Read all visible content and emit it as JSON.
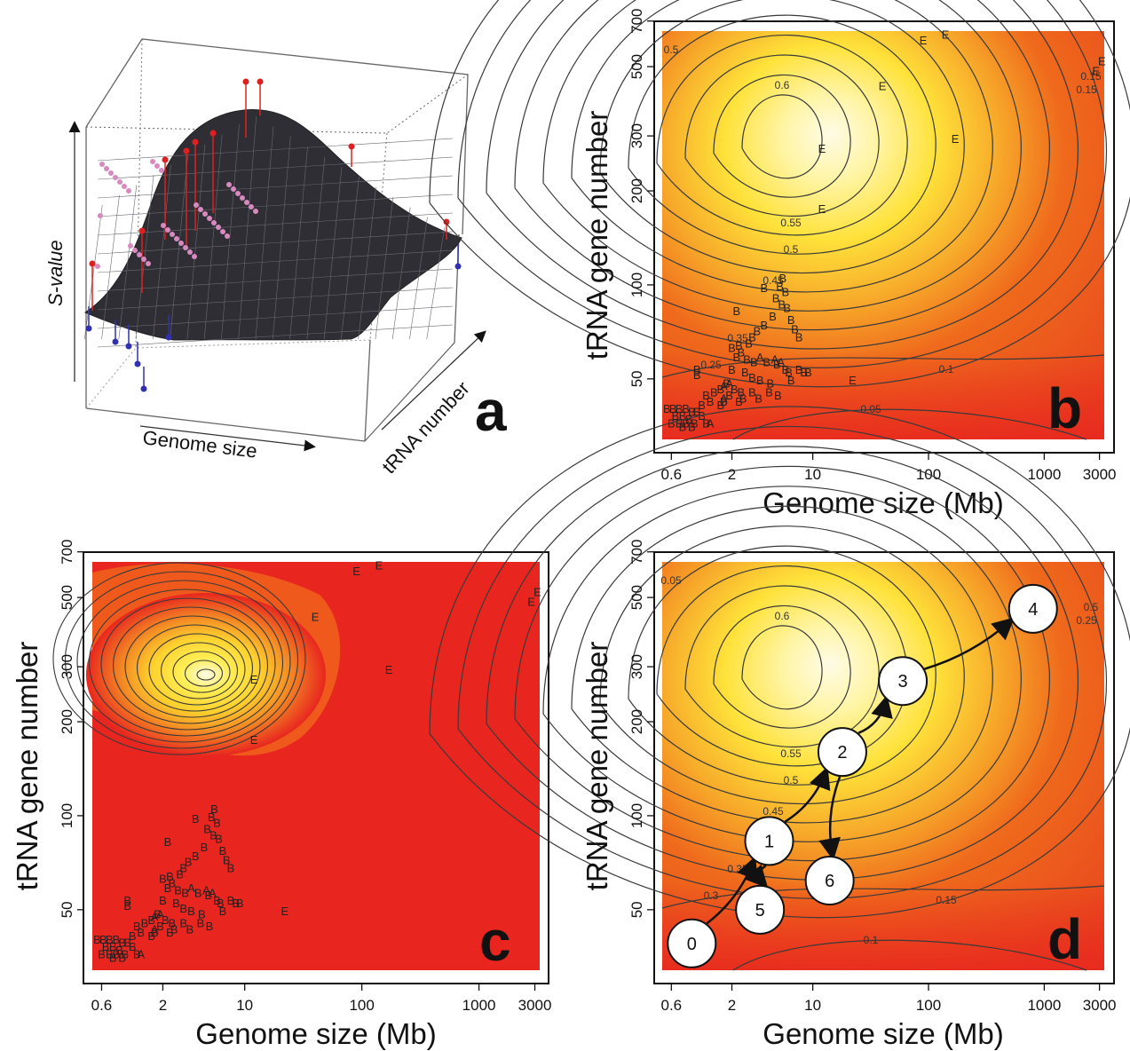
{
  "colors": {
    "red": "#e8261f",
    "orange": "#ef6a1c",
    "yellow": "#ffe23a",
    "pale": "#fffbe6",
    "contour": "#3a3a3a"
  },
  "chart_data": [
    {
      "panel": "a",
      "type": "surface",
      "xlabel": "Genome size",
      "ylabel": "tRNA number",
      "zlabel": "S-value",
      "points": {
        "above": "red",
        "below": "blue",
        "on": "pink"
      }
    },
    {
      "panel": "b",
      "type": "heatmap",
      "xlabel": "Genome size (Mb)",
      "ylabel": "tRNA gene number",
      "xscale": "log",
      "yscale": "log",
      "xlim": [
        0.5,
        3300
      ],
      "ylim": [
        32,
        650
      ],
      "xticks": [
        "0.6",
        "2",
        "10",
        "100",
        "1000",
        "3000"
      ],
      "yticks": [
        "50",
        "100",
        "200",
        "300",
        "500",
        "700"
      ],
      "contour_labels": [
        "0.6",
        "0.55",
        "0.5",
        "0.45",
        "0.35",
        "0.25",
        "0.15",
        "0.1",
        "0.05",
        "0.5",
        "0.15"
      ],
      "points": [
        {
          "l": "E",
          "x": 12,
          "y": 265
        },
        {
          "l": "E",
          "x": 12,
          "y": 170
        },
        {
          "l": "E",
          "x": 40,
          "y": 420
        },
        {
          "l": "E",
          "x": 90,
          "y": 590
        },
        {
          "l": "E",
          "x": 140,
          "y": 615
        },
        {
          "l": "E",
          "x": 170,
          "y": 285
        },
        {
          "l": "E",
          "x": 2800,
          "y": 470
        },
        {
          "l": "E",
          "x": 3150,
          "y": 505
        },
        {
          "l": "E",
          "x": 22,
          "y": 48
        },
        {
          "l": "B",
          "x": 5.5,
          "y": 102
        },
        {
          "l": "B",
          "x": 5.2,
          "y": 96
        },
        {
          "l": "B",
          "x": 5.8,
          "y": 92
        },
        {
          "l": "B",
          "x": 4.8,
          "y": 88
        },
        {
          "l": "B",
          "x": 5.4,
          "y": 84
        },
        {
          "l": "B",
          "x": 6.0,
          "y": 82
        },
        {
          "l": "B",
          "x": 4.5,
          "y": 77
        },
        {
          "l": "B",
          "x": 3.8,
          "y": 95
        },
        {
          "l": "B",
          "x": 2.2,
          "y": 80
        },
        {
          "l": "B",
          "x": 6.5,
          "y": 75
        },
        {
          "l": "B",
          "x": 7.0,
          "y": 70
        },
        {
          "l": "B",
          "x": 7.6,
          "y": 66
        },
        {
          "l": "B",
          "x": 3.8,
          "y": 72
        },
        {
          "l": "B",
          "x": 3.3,
          "y": 69
        },
        {
          "l": "B",
          "x": 3.0,
          "y": 66
        },
        {
          "l": "B",
          "x": 2.8,
          "y": 63
        },
        {
          "l": "B",
          "x": 2.3,
          "y": 62
        },
        {
          "l": "B",
          "x": 2.0,
          "y": 61
        },
        {
          "l": "B",
          "x": 2.4,
          "y": 59
        },
        {
          "l": "B",
          "x": 2.2,
          "y": 57
        },
        {
          "l": "B",
          "x": 2.7,
          "y": 56
        },
        {
          "l": "B",
          "x": 3.1,
          "y": 55
        },
        {
          "l": "B",
          "x": 4.0,
          "y": 55
        },
        {
          "l": "A",
          "x": 3.5,
          "y": 57
        },
        {
          "l": "A",
          "x": 4.7,
          "y": 56
        },
        {
          "l": "A",
          "x": 5.3,
          "y": 55
        },
        {
          "l": "B",
          "x": 4.9,
          "y": 54
        },
        {
          "l": "B",
          "x": 5.8,
          "y": 52
        },
        {
          "l": "B",
          "x": 6.2,
          "y": 51
        },
        {
          "l": "B",
          "x": 2.0,
          "y": 52
        },
        {
          "l": "B",
          "x": 2.6,
          "y": 51
        },
        {
          "l": "B",
          "x": 3.0,
          "y": 49
        },
        {
          "l": "B",
          "x": 3.5,
          "y": 48
        },
        {
          "l": "B",
          "x": 4.3,
          "y": 47
        },
        {
          "l": "B",
          "x": 6.5,
          "y": 48
        },
        {
          "l": "B",
          "x": 7.6,
          "y": 52
        },
        {
          "l": "B",
          "x": 8.4,
          "y": 51
        },
        {
          "l": "B",
          "x": 9.1,
          "y": 51
        },
        {
          "l": "B",
          "x": 1.0,
          "y": 52
        },
        {
          "l": "B",
          "x": 1.0,
          "y": 50
        },
        {
          "l": "B",
          "x": 1.8,
          "y": 47
        },
        {
          "l": "A",
          "x": 1.7,
          "y": 46
        },
        {
          "l": "A",
          "x": 1.9,
          "y": 47
        },
        {
          "l": "B",
          "x": 2.1,
          "y": 45
        },
        {
          "l": "B",
          "x": 2.4,
          "y": 44
        },
        {
          "l": "B",
          "x": 3.0,
          "y": 44
        },
        {
          "l": "B",
          "x": 3.4,
          "y": 42
        },
        {
          "l": "B",
          "x": 2.5,
          "y": 42
        },
        {
          "l": "B",
          "x": 1.6,
          "y": 45
        },
        {
          "l": "B",
          "x": 1.4,
          "y": 44
        },
        {
          "l": "B",
          "x": 1.2,
          "y": 43
        },
        {
          "l": "B",
          "x": 1.9,
          "y": 43
        },
        {
          "l": "B",
          "x": 2.3,
          "y": 41
        },
        {
          "l": "B",
          "x": 1.7,
          "y": 41
        },
        {
          "l": "B",
          "x": 1.6,
          "y": 40
        },
        {
          "l": "B",
          "x": 4.2,
          "y": 44
        },
        {
          "l": "B",
          "x": 5.0,
          "y": 43
        },
        {
          "l": "B",
          "x": 1.3,
          "y": 41
        },
        {
          "l": "B",
          "x": 1.1,
          "y": 40
        },
        {
          "l": "A",
          "x": 1.7,
          "y": 42
        },
        {
          "l": "B",
          "x": 0.55,
          "y": 39
        },
        {
          "l": "B",
          "x": 0.62,
          "y": 39
        },
        {
          "l": "B",
          "x": 0.7,
          "y": 39
        },
        {
          "l": "B",
          "x": 0.8,
          "y": 39
        },
        {
          "l": "B",
          "x": 0.9,
          "y": 38
        },
        {
          "l": "B",
          "x": 1.0,
          "y": 38
        },
        {
          "l": "B",
          "x": 0.65,
          "y": 37
        },
        {
          "l": "B",
          "x": 0.75,
          "y": 37
        },
        {
          "l": "B",
          "x": 0.85,
          "y": 36
        },
        {
          "l": "B",
          "x": 1.1,
          "y": 37
        },
        {
          "l": "B",
          "x": 0.6,
          "y": 35
        },
        {
          "l": "B",
          "x": 0.7,
          "y": 35
        },
        {
          "l": "B",
          "x": 0.8,
          "y": 35
        },
        {
          "l": "B",
          "x": 0.95,
          "y": 35
        },
        {
          "l": "B",
          "x": 1.2,
          "y": 35
        },
        {
          "l": "A",
          "x": 1.3,
          "y": 35
        },
        {
          "l": "B",
          "x": 0.75,
          "y": 34
        },
        {
          "l": "B",
          "x": 0.9,
          "y": 34
        }
      ]
    },
    {
      "panel": "c",
      "type": "heatmap",
      "xlabel": "Genome size (Mb)",
      "ylabel": "tRNA gene number",
      "xscale": "log",
      "yscale": "log",
      "xlim": [
        0.5,
        3300
      ],
      "ylim": [
        32,
        650
      ],
      "xticks": [
        "0.6",
        "2",
        "10",
        "100",
        "1000",
        "3000"
      ],
      "yticks": [
        "50",
        "100",
        "200",
        "300",
        "500",
        "700"
      ]
    },
    {
      "panel": "d",
      "type": "heatmap",
      "xlabel": "Genome size (Mb)",
      "ylabel": "tRNA gene number",
      "xscale": "log",
      "yscale": "log",
      "xlim": [
        0.5,
        3300
      ],
      "ylim": [
        32,
        650
      ],
      "xticks": [
        "0.6",
        "2",
        "10",
        "100",
        "1000",
        "3000"
      ],
      "yticks": [
        "50",
        "100",
        "200",
        "300",
        "500",
        "700"
      ],
      "contour_labels": [
        "0.6",
        "0.55",
        "0.5",
        "0.45",
        "0.35",
        "0.3",
        "0.25",
        "0.15",
        "0.1",
        "0.05",
        "0.5"
      ],
      "steps": [
        {
          "label": "0",
          "x": 0.9,
          "y": 39
        },
        {
          "label": "1",
          "x": 4.2,
          "y": 83
        },
        {
          "label": "2",
          "x": 18,
          "y": 160
        },
        {
          "label": "3",
          "x": 60,
          "y": 270
        },
        {
          "label": "4",
          "x": 800,
          "y": 460
        },
        {
          "label": "5",
          "x": 3.5,
          "y": 50
        },
        {
          "label": "6",
          "x": 14,
          "y": 62
        }
      ]
    }
  ],
  "panel_labels": {
    "a": "a",
    "b": "b",
    "c": "c",
    "d": "d"
  },
  "axis_text": {
    "xlabel": "Genome size (Mb)",
    "ylabel": "tRNA gene number",
    "a_x": "Genome size",
    "a_y": "tRNA number",
    "a_z": "S-value"
  }
}
